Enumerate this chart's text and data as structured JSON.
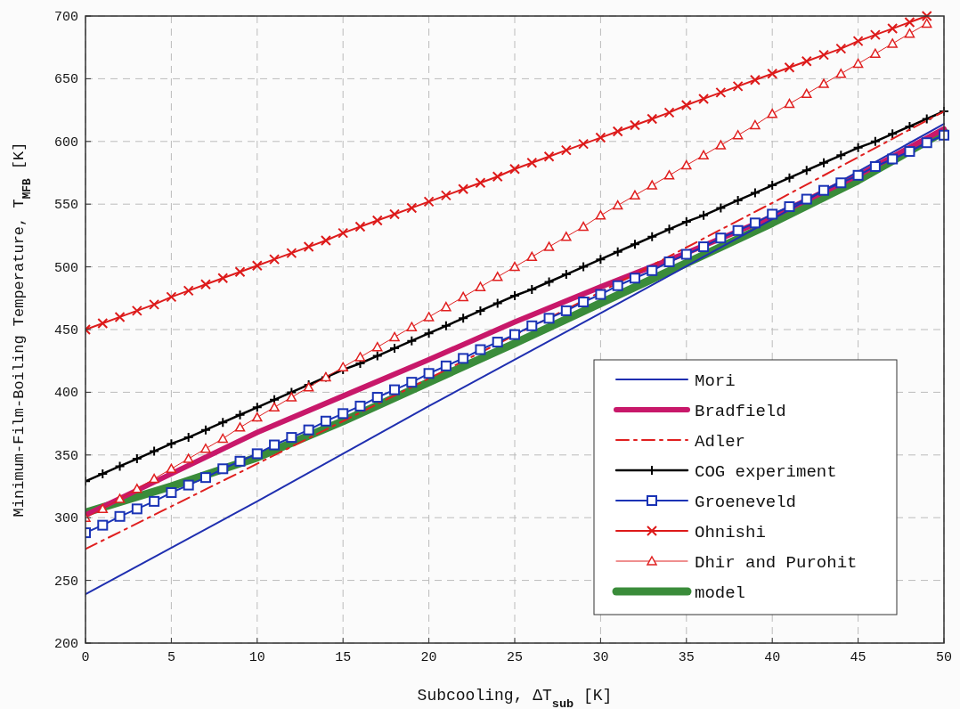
{
  "chart_data": {
    "type": "line",
    "xlabel": "Subcooling, ΔT$_{sub}$ [K]",
    "ylabel": "Minimum-Film-Boiling Temperature, T$_{MFB}$ [K]",
    "xlim": [
      0,
      50
    ],
    "xticks": [
      0,
      5,
      10,
      15,
      20,
      25,
      30,
      35,
      40,
      45,
      50
    ],
    "ylim": [
      200,
      700
    ],
    "yticks": [
      200,
      250,
      300,
      350,
      400,
      450,
      500,
      550,
      600,
      650,
      700
    ],
    "grid": true,
    "legend": "bottom right",
    "series": [
      {
        "name": "Mori",
        "color": "#1f2fb0",
        "marker": "none",
        "line_style": "solid",
        "x": [
          0,
          10,
          20,
          30,
          40,
          50
        ],
        "values": [
          239,
          313,
          389,
          463,
          538,
          614
        ]
      },
      {
        "name": "Bradfield",
        "color": "#c8186a",
        "marker": "none",
        "line_style": "solid",
        "x": [
          0,
          5,
          10,
          15,
          20,
          25,
          30,
          35,
          40,
          45,
          50
        ],
        "values": [
          302,
          335,
          368,
          397,
          426,
          456,
          484,
          511,
          540,
          573,
          610
        ]
      },
      {
        "name": "Adler",
        "color": "#e01f1f",
        "marker": "none",
        "line_style": "dashed",
        "x": [
          0,
          10,
          20,
          30,
          40,
          50
        ],
        "values": [
          275,
          343,
          411,
          480,
          551,
          624
        ]
      },
      {
        "name": "COG experiment",
        "color": "#000000",
        "marker": "cross",
        "line_style": "solid",
        "x": [
          0,
          1,
          2,
          3,
          4,
          5,
          6,
          7,
          8,
          9,
          10,
          11,
          12,
          13,
          14,
          15,
          16,
          17,
          18,
          19,
          20,
          21,
          22,
          23,
          24,
          25,
          26,
          27,
          28,
          29,
          30,
          31,
          32,
          33,
          34,
          35,
          36,
          37,
          38,
          39,
          40,
          41,
          42,
          43,
          44,
          45,
          46,
          47,
          48,
          49,
          50
        ],
        "values": [
          329,
          335,
          341,
          347,
          353,
          359,
          364,
          370,
          376,
          382,
          388,
          394,
          400,
          406,
          412,
          418,
          423,
          429,
          435,
          441,
          447,
          453,
          459,
          465,
          471,
          477,
          482,
          488,
          494,
          500,
          506,
          512,
          518,
          524,
          530,
          536,
          541,
          547,
          553,
          559,
          565,
          571,
          577,
          583,
          589,
          595,
          600,
          606,
          612,
          618,
          624
        ]
      },
      {
        "name": "Groeneveld",
        "color": "#1a33b5",
        "marker": "square",
        "line_style": "solid",
        "x": [
          0,
          1,
          2,
          3,
          4,
          5,
          6,
          7,
          8,
          9,
          10,
          11,
          12,
          13,
          14,
          15,
          16,
          17,
          18,
          19,
          20,
          21,
          22,
          23,
          24,
          25,
          26,
          27,
          28,
          29,
          30,
          31,
          32,
          33,
          34,
          35,
          36,
          37,
          38,
          39,
          40,
          41,
          42,
          43,
          44,
          45,
          46,
          47,
          48,
          49,
          50
        ],
        "values": [
          288,
          294,
          301,
          307,
          313,
          320,
          326,
          332,
          339,
          345,
          351,
          358,
          364,
          370,
          377,
          383,
          389,
          396,
          402,
          408,
          415,
          421,
          427,
          434,
          440,
          446,
          453,
          459,
          465,
          472,
          478,
          485,
          491,
          497,
          504,
          510,
          516,
          523,
          529,
          535,
          542,
          548,
          554,
          561,
          567,
          573,
          580,
          586,
          592,
          599,
          605
        ]
      },
      {
        "name": "Ohnishi",
        "color": "#dd1a1a",
        "marker": "cross",
        "line_style": "solid",
        "x": [
          0,
          1,
          2,
          3,
          4,
          5,
          6,
          7,
          8,
          9,
          10,
          11,
          12,
          13,
          14,
          15,
          16,
          17,
          18,
          19,
          20,
          21,
          22,
          23,
          24,
          25,
          26,
          27,
          28,
          29,
          30,
          31,
          32,
          33,
          34,
          35,
          36,
          37,
          38,
          39,
          40,
          41,
          42,
          43,
          44,
          45,
          46,
          47,
          48,
          49
        ],
        "values": [
          450,
          455,
          460,
          465,
          470,
          476,
          481,
          486,
          491,
          496,
          501,
          506,
          511,
          516,
          521,
          527,
          532,
          537,
          542,
          547,
          552,
          557,
          562,
          567,
          572,
          578,
          583,
          588,
          593,
          598,
          603,
          608,
          613,
          618,
          623,
          629,
          634,
          639,
          644,
          649,
          654,
          659,
          664,
          669,
          674,
          680,
          685,
          690,
          695,
          700
        ]
      },
      {
        "name": "Dhir and Purohit",
        "color": "#e02020",
        "marker": "triangle",
        "line_style": "solid",
        "x": [
          0,
          1,
          2,
          3,
          4,
          5,
          6,
          7,
          8,
          9,
          10,
          11,
          12,
          13,
          14,
          15,
          16,
          17,
          18,
          19,
          20,
          21,
          22,
          23,
          24,
          25,
          26,
          27,
          28,
          29,
          30,
          31,
          32,
          33,
          34,
          35,
          36,
          37,
          38,
          39,
          40,
          41,
          42,
          43,
          44,
          45,
          46,
          47,
          48,
          49
        ],
        "values": [
          300,
          307,
          315,
          323,
          331,
          339,
          347,
          355,
          363,
          372,
          380,
          388,
          396,
          404,
          412,
          420,
          428,
          436,
          444,
          452,
          460,
          468,
          476,
          484,
          492,
          500,
          508,
          516,
          524,
          532,
          541,
          549,
          557,
          565,
          573,
          581,
          589,
          597,
          605,
          613,
          622,
          630,
          638,
          646,
          654,
          662,
          670,
          678,
          686,
          694
        ]
      },
      {
        "name": "model",
        "color": "#3a8c3a",
        "marker": "none",
        "line_style": "solid",
        "x": [
          0,
          5,
          10,
          15,
          20,
          25,
          30,
          35,
          40,
          45,
          50
        ],
        "values": [
          304,
          325,
          348,
          377,
          408,
          439,
          471,
          503,
          535,
          569,
          608
        ]
      }
    ]
  }
}
